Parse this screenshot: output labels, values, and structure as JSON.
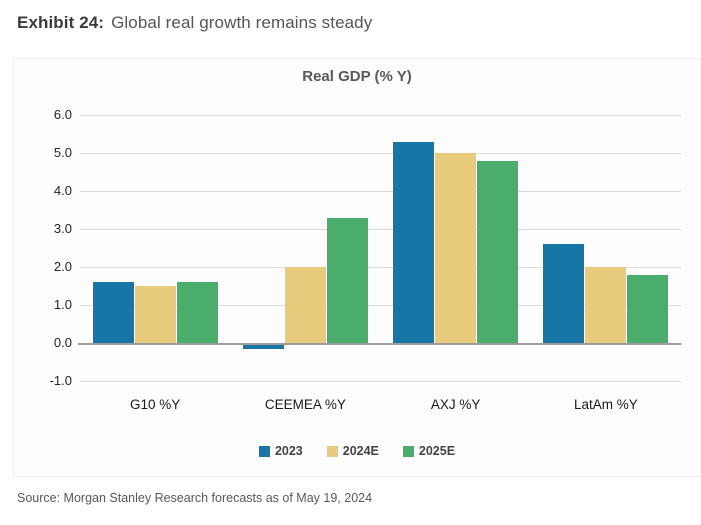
{
  "page": {
    "exhibit_label": "Exhibit 24:",
    "exhibit_title": "Global real growth remains steady",
    "source": "Source: Morgan Stanley Research forecasts as of May 19, 2024"
  },
  "chart_data": {
    "type": "bar",
    "title": "Real GDP (% Y)",
    "categories": [
      "G10 %Y",
      "CEEMEA %Y",
      "AXJ %Y",
      "LatAm %Y"
    ],
    "series": [
      {
        "name": "2023",
        "color": "#1876A6",
        "values": [
          1.6,
          -0.1,
          5.3,
          2.6
        ]
      },
      {
        "name": "2024E",
        "color": "#E9CB7D",
        "values": [
          1.5,
          2.0,
          5.0,
          2.0
        ]
      },
      {
        "name": "2025E",
        "color": "#4BAD6B",
        "values": [
          1.6,
          3.3,
          4.8,
          1.8
        ]
      }
    ],
    "xlabel": "",
    "ylabel": "",
    "ylim": [
      -1.0,
      6.0
    ],
    "yticks": [
      6.0,
      5.0,
      4.0,
      3.0,
      2.0,
      1.0,
      0.0,
      -1.0
    ],
    "grid": true,
    "legend_position": "bottom",
    "colors": {
      "gridline": "#DCDCDC",
      "zero_line": "#9C9C9C"
    }
  }
}
